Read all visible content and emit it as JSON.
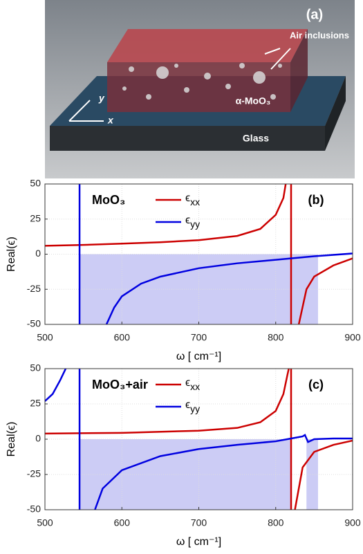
{
  "panel_a": {
    "label": "(a)",
    "arrow_label": "Air inclusions",
    "film_label": "α-MoO₃",
    "substrate_label": "Glass",
    "axis_y": "y",
    "axis_x": "x"
  },
  "chart_data": [
    {
      "type": "line",
      "title": "MoO₃",
      "panel_label": "(b)",
      "x_label": "ω [ cm⁻¹]",
      "y_label": "Real(ϵ)",
      "xlim": [
        500,
        900
      ],
      "xticks": [
        500,
        600,
        700,
        800,
        900
      ],
      "ylim": [
        -50,
        50
      ],
      "yticks": [
        -50,
        -25,
        0,
        25,
        50
      ],
      "grid": true,
      "shaded_regions": [
        {
          "x": [
            545,
            855
          ],
          "y": [
            -50,
            0
          ],
          "color": "#ccccf5"
        }
      ],
      "series": [
        {
          "name": "ϵxx",
          "color": "#cc0000",
          "x": [
            500,
            545,
            600,
            650,
            700,
            750,
            780,
            800,
            810,
            813,
            null,
            820,
            820,
            null,
            830,
            840,
            850,
            875,
            900
          ],
          "values": [
            6,
            6.5,
            7.5,
            8.5,
            10,
            13,
            18,
            28,
            40,
            50,
            null,
            50,
            -50,
            null,
            -50,
            -25,
            -16,
            -8,
            -3
          ]
        },
        {
          "name": "ϵyy",
          "color": "#0000e0",
          "x": [
            545,
            545,
            null,
            580,
            590,
            600,
            625,
            650,
            700,
            750,
            800,
            850,
            900
          ],
          "values": [
            50,
            -50,
            null,
            -50,
            -38,
            -30,
            -21,
            -16,
            -10,
            -6.5,
            -4,
            -1.5,
            0.5
          ]
        }
      ]
    },
    {
      "type": "line",
      "title": "MoO₃+air",
      "panel_label": "(c)",
      "x_label": "ω [ cm⁻¹]",
      "y_label": "Real(ϵ)",
      "xlim": [
        500,
        900
      ],
      "xticks": [
        500,
        600,
        700,
        800,
        900
      ],
      "ylim": [
        -50,
        50
      ],
      "yticks": [
        -50,
        -25,
        0,
        25,
        50
      ],
      "grid": true,
      "shaded_regions": [
        {
          "x": [
            545,
            820
          ],
          "y": [
            -50,
            0
          ],
          "color": "#ccccf5"
        },
        {
          "x": [
            840,
            855
          ],
          "y": [
            -50,
            0
          ],
          "color": "#ccccf5"
        }
      ],
      "series": [
        {
          "name": "ϵxx",
          "color": "#cc0000",
          "x": [
            500,
            600,
            700,
            750,
            780,
            800,
            810,
            815,
            817,
            null,
            820,
            820,
            null,
            825,
            835,
            850,
            875,
            900
          ],
          "values": [
            4,
            4.5,
            6,
            8,
            12,
            20,
            32,
            45,
            50,
            null,
            50,
            -50,
            null,
            -50,
            -20,
            -9,
            -4,
            -1
          ]
        },
        {
          "name": "ϵyy",
          "color": "#0000e0",
          "x": [
            500,
            510,
            520,
            527,
            null,
            545,
            545,
            null,
            565,
            575,
            600,
            650,
            700,
            750,
            800,
            820,
            835,
            838,
            842,
            850,
            875,
            900
          ],
          "values": [
            27,
            32,
            42,
            50,
            null,
            50,
            -50,
            null,
            -50,
            -35,
            -22,
            -12,
            -7,
            -4,
            -1.5,
            0.5,
            2,
            3,
            -2,
            0,
            0.5,
            0.5
          ]
        }
      ]
    }
  ]
}
